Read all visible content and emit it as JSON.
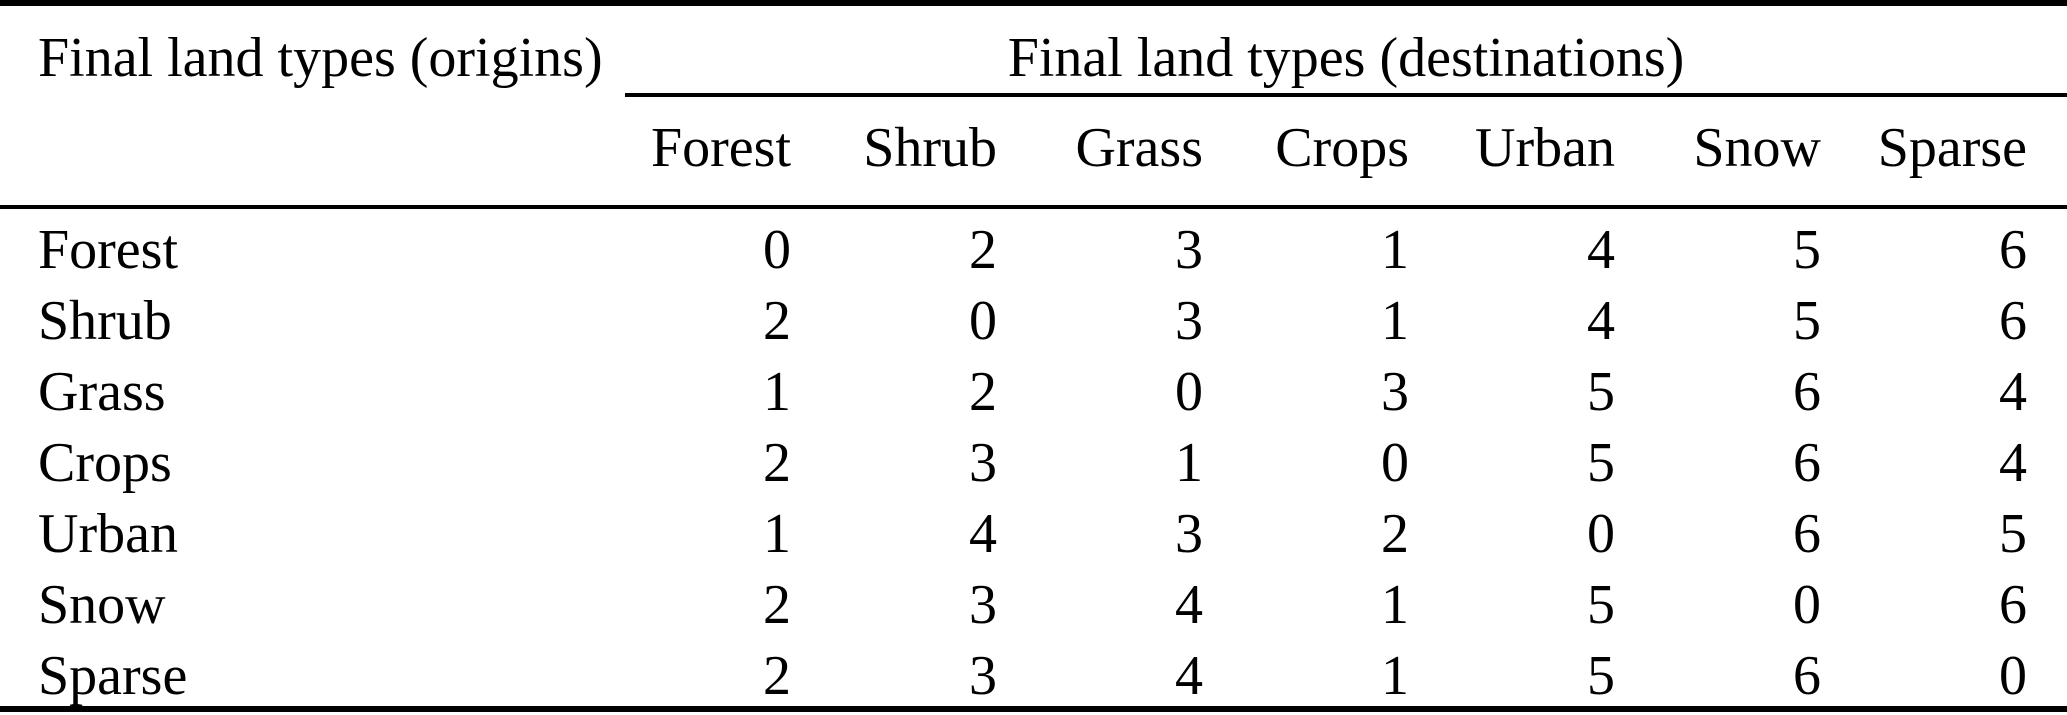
{
  "table": {
    "origin_header": "Final land types (origins)",
    "destination_header": "Final land types (destinations)",
    "columns": [
      "Forest",
      "Shrub",
      "Grass",
      "Crops",
      "Urban",
      "Snow",
      "Sparse"
    ],
    "rows": [
      {
        "label": "Forest",
        "values": [
          0,
          2,
          3,
          1,
          4,
          5,
          6
        ]
      },
      {
        "label": "Shrub",
        "values": [
          2,
          0,
          3,
          1,
          4,
          5,
          6
        ]
      },
      {
        "label": "Grass",
        "values": [
          1,
          2,
          0,
          3,
          5,
          6,
          4
        ]
      },
      {
        "label": "Crops",
        "values": [
          2,
          3,
          1,
          0,
          5,
          6,
          4
        ]
      },
      {
        "label": "Urban",
        "values": [
          1,
          4,
          3,
          2,
          0,
          6,
          5
        ]
      },
      {
        "label": "Snow",
        "values": [
          2,
          3,
          4,
          1,
          5,
          0,
          6
        ]
      },
      {
        "label": "Sparse",
        "values": [
          2,
          3,
          4,
          1,
          5,
          6,
          0
        ]
      }
    ]
  },
  "colors": {
    "text": "#000000",
    "rule": "#000000",
    "background": "#ffffff"
  },
  "chart_data": {
    "type": "table",
    "title": "Final land types transition table",
    "row_header": "Final land types (origins)",
    "column_group_header": "Final land types (destinations)",
    "categories": [
      "Forest",
      "Shrub",
      "Grass",
      "Crops",
      "Urban",
      "Snow",
      "Sparse"
    ],
    "series": [
      {
        "name": "Forest",
        "values": [
          0,
          2,
          3,
          1,
          4,
          5,
          6
        ]
      },
      {
        "name": "Shrub",
        "values": [
          2,
          0,
          3,
          1,
          4,
          5,
          6
        ]
      },
      {
        "name": "Grass",
        "values": [
          1,
          2,
          0,
          3,
          5,
          6,
          4
        ]
      },
      {
        "name": "Crops",
        "values": [
          2,
          3,
          1,
          0,
          5,
          6,
          4
        ]
      },
      {
        "name": "Urban",
        "values": [
          1,
          4,
          3,
          2,
          0,
          6,
          5
        ]
      },
      {
        "name": "Snow",
        "values": [
          2,
          3,
          4,
          1,
          5,
          0,
          6
        ]
      },
      {
        "name": "Sparse",
        "values": [
          2,
          3,
          4,
          1,
          5,
          6,
          0
        ]
      }
    ]
  }
}
